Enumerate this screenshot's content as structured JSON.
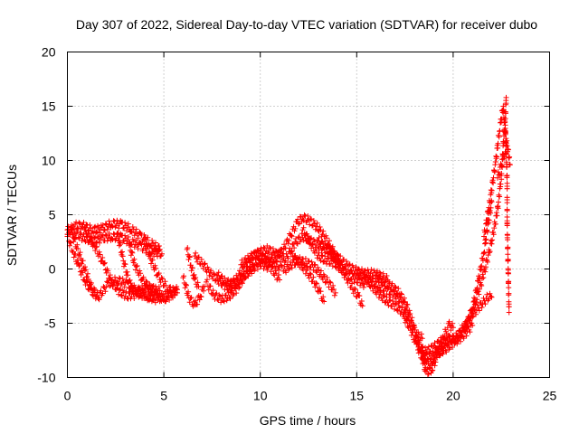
{
  "chart_data": {
    "type": "scatter",
    "title": "Day 307 of 2022, Sidereal Day-to-day VTEC variation (SDTVAR) for receiver dubo",
    "xlabel": "GPS time / hours",
    "ylabel": "SDTVAR / TECUs",
    "xlim": [
      0,
      25
    ],
    "ylim": [
      -10,
      20
    ],
    "x_ticks": [
      0,
      5,
      10,
      15,
      20,
      25
    ],
    "x_tick_labels": [
      "0",
      "5",
      "10",
      "15",
      "20",
      "25"
    ],
    "y_ticks": [
      -10,
      -5,
      0,
      5,
      10,
      15,
      20
    ],
    "y_tick_labels": [
      "-10",
      "-5",
      "0",
      "5",
      "10",
      "15",
      "20"
    ],
    "grid": true,
    "marker": "+",
    "series": [
      {
        "name": "dubo",
        "color": "#ff0000",
        "tracks": [
          [
            [
              0.0,
              3.2
            ],
            [
              0.3,
              4.0
            ],
            [
              0.8,
              4.0
            ],
            [
              1.3,
              3.6
            ],
            [
              1.8,
              3.7
            ],
            [
              2.3,
              4.2
            ],
            [
              2.8,
              4.1
            ],
            [
              3.3,
              3.7
            ],
            [
              3.8,
              3.0
            ],
            [
              4.3,
              2.4
            ],
            [
              4.8,
              1.8
            ]
          ],
          [
            [
              0.0,
              3.6
            ],
            [
              0.4,
              3.3
            ],
            [
              0.8,
              2.9
            ],
            [
              1.3,
              2.6
            ],
            [
              1.8,
              2.8
            ],
            [
              2.3,
              3.0
            ],
            [
              2.8,
              2.9
            ],
            [
              3.3,
              2.5
            ],
            [
              3.8,
              2.1
            ],
            [
              4.3,
              1.6
            ],
            [
              4.9,
              1.4
            ]
          ],
          [
            [
              0.0,
              3.0
            ],
            [
              0.3,
              1.6
            ],
            [
              0.6,
              0.2
            ],
            [
              0.9,
              -1.0
            ],
            [
              1.2,
              -2.0
            ],
            [
              1.6,
              -2.6
            ]
          ],
          [
            [
              0.2,
              3.4
            ],
            [
              0.7,
              1.0
            ],
            [
              1.2,
              -1.5
            ],
            [
              1.6,
              -2.6
            ],
            [
              2.1,
              -1.4
            ],
            [
              2.6,
              -1.0
            ],
            [
              3.1,
              -1.4
            ],
            [
              3.6,
              -2.0
            ],
            [
              4.1,
              -1.8
            ],
            [
              4.6,
              -1.9
            ]
          ],
          [
            [
              0.9,
              3.6
            ],
            [
              1.4,
              2.2
            ],
            [
              1.9,
              0.4
            ],
            [
              2.3,
              -1.2
            ],
            [
              2.7,
              -2.1
            ],
            [
              3.1,
              -2.5
            ],
            [
              3.6,
              -2.3
            ],
            [
              4.1,
              -2.4
            ],
            [
              4.6,
              -2.5
            ],
            [
              5.1,
              -2.7
            ],
            [
              5.6,
              -2.2
            ]
          ],
          [
            [
              2.6,
              3.2
            ],
            [
              2.9,
              0.8
            ],
            [
              3.2,
              -1.2
            ],
            [
              3.4,
              -2.0
            ],
            [
              3.7,
              -2.1
            ],
            [
              4.2,
              -2.6
            ],
            [
              4.7,
              -2.8
            ],
            [
              5.2,
              -2.3
            ],
            [
              5.7,
              -1.9
            ]
          ],
          [
            [
              3.2,
              2.2
            ],
            [
              3.5,
              0.4
            ],
            [
              3.9,
              -1.0
            ],
            [
              4.3,
              -1.8
            ],
            [
              4.8,
              -2.0
            ]
          ],
          [
            [
              4.0,
              2.8
            ],
            [
              4.3,
              1.0
            ],
            [
              4.7,
              -0.6
            ],
            [
              5.2,
              -1.8
            ],
            [
              5.7,
              -2.2
            ]
          ],
          [
            [
              6.2,
              1.8
            ],
            [
              6.4,
              0.4
            ],
            [
              6.6,
              -1.0
            ],
            [
              6.8,
              -1.6
            ]
          ],
          [
            [
              6.0,
              -0.8
            ],
            [
              6.3,
              -2.6
            ],
            [
              6.6,
              -3.4
            ],
            [
              6.9,
              -2.4
            ],
            [
              7.1,
              -1.6
            ]
          ],
          [
            [
              6.6,
              1.2
            ],
            [
              7.0,
              0.5
            ],
            [
              7.4,
              -0.4
            ],
            [
              7.8,
              -1.0
            ],
            [
              8.2,
              -1.6
            ],
            [
              8.5,
              -1.8
            ]
          ],
          [
            [
              7.2,
              -1.2
            ],
            [
              7.6,
              -2.4
            ],
            [
              8.0,
              -2.8
            ],
            [
              8.4,
              -2.5
            ],
            [
              8.8,
              -1.8
            ],
            [
              9.2,
              -0.6
            ],
            [
              9.6,
              0.0
            ],
            [
              10.0,
              0.5
            ],
            [
              10.4,
              0.2
            ]
          ],
          [
            [
              7.8,
              -0.6
            ],
            [
              8.2,
              -1.2
            ],
            [
              8.6,
              -1.4
            ],
            [
              9.0,
              -1.0
            ],
            [
              9.4,
              -0.2
            ],
            [
              9.8,
              0.6
            ],
            [
              10.2,
              1.0
            ],
            [
              10.6,
              0.5
            ],
            [
              11.0,
              0.2
            ]
          ],
          [
            [
              9.0,
              0.4
            ],
            [
              9.4,
              1.0
            ],
            [
              9.8,
              1.4
            ],
            [
              10.2,
              1.0
            ],
            [
              10.6,
              0.0
            ],
            [
              11.0,
              -1.0
            ]
          ],
          [
            [
              8.4,
              -1.6
            ],
            [
              8.8,
              -0.8
            ],
            [
              9.2,
              0.2
            ],
            [
              9.6,
              1.2
            ],
            [
              10.0,
              1.6
            ],
            [
              10.4,
              1.8
            ],
            [
              10.8,
              1.4
            ],
            [
              11.2,
              1.4
            ]
          ],
          [
            [
              10.4,
              0.6
            ],
            [
              10.8,
              1.0
            ],
            [
              11.2,
              1.8
            ],
            [
              11.6,
              3.2
            ],
            [
              11.9,
              4.2
            ],
            [
              12.2,
              4.8
            ],
            [
              12.6,
              4.4
            ],
            [
              13.0,
              3.8
            ],
            [
              13.4,
              2.8
            ],
            [
              13.8,
              1.6
            ]
          ],
          [
            [
              11.0,
              0.2
            ],
            [
              11.4,
              1.2
            ],
            [
              11.8,
              2.4
            ],
            [
              12.2,
              3.0
            ],
            [
              12.6,
              2.6
            ],
            [
              13.0,
              2.2
            ],
            [
              13.4,
              1.8
            ],
            [
              13.8,
              1.3
            ],
            [
              14.2,
              0.6
            ]
          ],
          [
            [
              11.2,
              -0.2
            ],
            [
              11.6,
              0.4
            ],
            [
              12.0,
              0.8
            ],
            [
              12.4,
              0.6
            ],
            [
              12.8,
              0.2
            ],
            [
              13.2,
              -0.6
            ],
            [
              13.6,
              -1.4
            ],
            [
              13.9,
              -2.2
            ]
          ],
          [
            [
              11.6,
              1.4
            ],
            [
              12.0,
              0.6
            ],
            [
              12.4,
              -0.2
            ],
            [
              12.8,
              -1.2
            ],
            [
              13.1,
              -2.2
            ],
            [
              13.3,
              -3.0
            ]
          ],
          [
            [
              12.2,
              3.6
            ],
            [
              12.6,
              2.4
            ],
            [
              13.0,
              1.2
            ],
            [
              13.4,
              0.8
            ],
            [
              13.8,
              0.6
            ],
            [
              14.2,
              0.0
            ],
            [
              14.6,
              -0.6
            ],
            [
              15.0,
              -1.0
            ],
            [
              15.4,
              -1.4
            ]
          ],
          [
            [
              13.0,
              2.6
            ],
            [
              13.4,
              2.0
            ],
            [
              13.8,
              1.4
            ],
            [
              14.2,
              0.8
            ],
            [
              14.6,
              0.2
            ],
            [
              15.0,
              -0.2
            ],
            [
              15.4,
              -0.4
            ],
            [
              15.8,
              -0.4
            ],
            [
              16.2,
              -0.6
            ],
            [
              16.6,
              -1.0
            ]
          ],
          [
            [
              13.6,
              1.6
            ],
            [
              14.0,
              0.6
            ],
            [
              14.4,
              -0.6
            ],
            [
              14.8,
              -1.8
            ],
            [
              15.1,
              -2.6
            ],
            [
              15.3,
              -3.4
            ]
          ],
          [
            [
              15.0,
              -0.4
            ],
            [
              15.4,
              -0.8
            ],
            [
              15.8,
              -1.2
            ],
            [
              16.2,
              -1.6
            ],
            [
              16.6,
              -2.0
            ],
            [
              17.0,
              -2.4
            ],
            [
              17.4,
              -3.2
            ],
            [
              17.7,
              -4.2
            ]
          ],
          [
            [
              15.4,
              -0.8
            ],
            [
              15.8,
              -1.6
            ],
            [
              16.2,
              -2.4
            ],
            [
              16.6,
              -3.0
            ],
            [
              17.0,
              -3.4
            ],
            [
              17.4,
              -4.0
            ],
            [
              17.8,
              -5.0
            ],
            [
              18.1,
              -6.0
            ],
            [
              18.4,
              -6.4
            ]
          ],
          [
            [
              16.0,
              -0.6
            ],
            [
              16.4,
              -1.2
            ],
            [
              16.8,
              -1.6
            ],
            [
              17.2,
              -2.2
            ],
            [
              17.6,
              -3.4
            ],
            [
              17.9,
              -5.0
            ],
            [
              18.2,
              -6.8
            ],
            [
              18.5,
              -8.4
            ],
            [
              18.7,
              -9.0
            ],
            [
              18.9,
              -8.6
            ],
            [
              19.2,
              -7.6
            ],
            [
              19.5,
              -6.2
            ],
            [
              19.8,
              -5.2
            ],
            [
              20.0,
              -5.4
            ]
          ],
          [
            [
              17.4,
              -4.2
            ],
            [
              17.8,
              -5.6
            ],
            [
              18.1,
              -7.0
            ],
            [
              18.4,
              -8.2
            ],
            [
              18.6,
              -9.6
            ],
            [
              18.9,
              -9.2
            ],
            [
              19.2,
              -8.0
            ],
            [
              19.5,
              -7.0
            ],
            [
              19.8,
              -6.4
            ],
            [
              20.2,
              -6.6
            ],
            [
              20.6,
              -6.0
            ],
            [
              21.0,
              -5.2
            ]
          ],
          [
            [
              18.2,
              -7.2
            ],
            [
              18.6,
              -7.6
            ],
            [
              19.0,
              -7.2
            ],
            [
              19.4,
              -6.6
            ],
            [
              19.8,
              -6.6
            ],
            [
              20.2,
              -6.2
            ],
            [
              20.6,
              -5.2
            ],
            [
              21.0,
              -4.2
            ],
            [
              21.4,
              -3.4
            ],
            [
              21.8,
              -2.6
            ],
            [
              22.0,
              -2.6
            ]
          ],
          [
            [
              18.4,
              -7.8
            ],
            [
              18.8,
              -8.2
            ],
            [
              19.2,
              -7.8
            ],
            [
              19.6,
              -7.4
            ],
            [
              20.0,
              -6.8
            ],
            [
              20.4,
              -6.0
            ],
            [
              20.8,
              -4.8
            ],
            [
              21.2,
              -2.8
            ],
            [
              21.6,
              -0.4
            ],
            [
              22.0,
              2.6
            ],
            [
              22.3,
              5.4
            ],
            [
              22.5,
              8.6
            ],
            [
              22.6,
              11.4
            ],
            [
              22.7,
              13.6
            ],
            [
              22.75,
              15.8
            ]
          ],
          [
            [
              20.6,
              -5.6
            ],
            [
              21.0,
              -3.6
            ],
            [
              21.3,
              -1.2
            ],
            [
              21.6,
              1.6
            ],
            [
              21.8,
              4.0
            ],
            [
              22.0,
              6.2
            ]
          ],
          [
            [
              21.6,
              3.0
            ],
            [
              21.9,
              6.2
            ],
            [
              22.2,
              9.8
            ],
            [
              22.4,
              12.8
            ],
            [
              22.6,
              15.0
            ]
          ],
          [
            [
              22.6,
              14.6
            ],
            [
              22.7,
              13.0
            ],
            [
              22.75,
              10.6
            ],
            [
              22.8,
              8.0
            ],
            [
              22.8,
              4.0
            ],
            [
              22.85,
              0.2
            ],
            [
              22.9,
              -4.0
            ]
          ],
          [
            [
              22.7,
              12.6
            ],
            [
              22.8,
              11.4
            ],
            [
              22.9,
              10.2
            ],
            [
              22.95,
              9.6
            ]
          ],
          [
            [
              22.3,
              8.4
            ],
            [
              22.5,
              9.6
            ],
            [
              22.7,
              10.8
            ]
          ]
        ]
      }
    ]
  }
}
